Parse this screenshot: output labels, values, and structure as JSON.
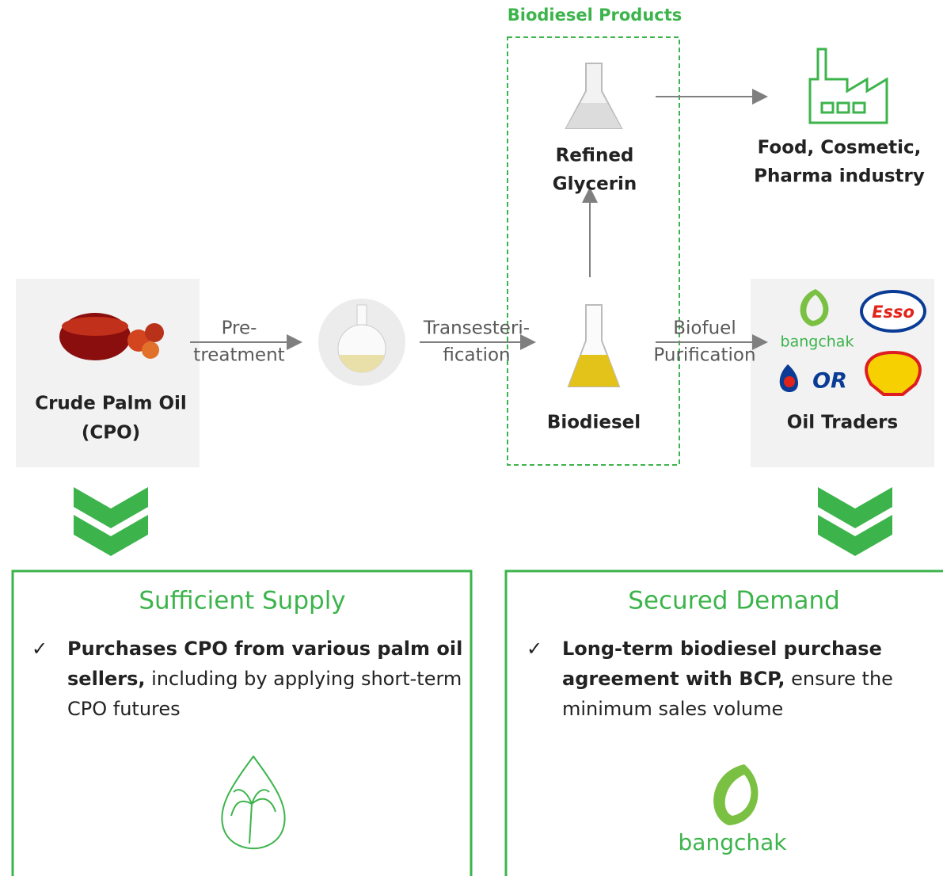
{
  "group_title": "Biodiesel Products",
  "nodes": {
    "cpo": {
      "label": [
        "Crude Palm Oil",
        "(CPO)"
      ]
    },
    "glycerin": {
      "label": [
        "Refined",
        "Glycerin"
      ]
    },
    "industry": {
      "label": [
        "Food, Cosmetic,",
        "Pharma industry"
      ]
    },
    "biodiesel": {
      "label": [
        "Biodiesel"
      ]
    },
    "traders": {
      "label": [
        "Oil Traders"
      ],
      "logos": [
        "bangchak",
        "Esso",
        "OR"
      ]
    }
  },
  "edges": [
    {
      "label": [
        "Pre-",
        "treatment"
      ]
    },
    {
      "label": [
        "Transesteri-",
        "fication"
      ]
    },
    {
      "label": [
        "Biofuel",
        "Purification"
      ]
    }
  ],
  "panels": [
    {
      "title": "Sufficient Supply",
      "bullet": "✓",
      "bold": "Purchases CPO from various palm oil sellers,",
      "text": "including by applying short-term CPO futures"
    },
    {
      "title": "Secured Demand",
      "bullet": "✓",
      "bold": "Long-term biodiesel purchase agreement with BCP,",
      "text": "ensure the minimum sales volume",
      "logo": "bangchak"
    }
  ]
}
